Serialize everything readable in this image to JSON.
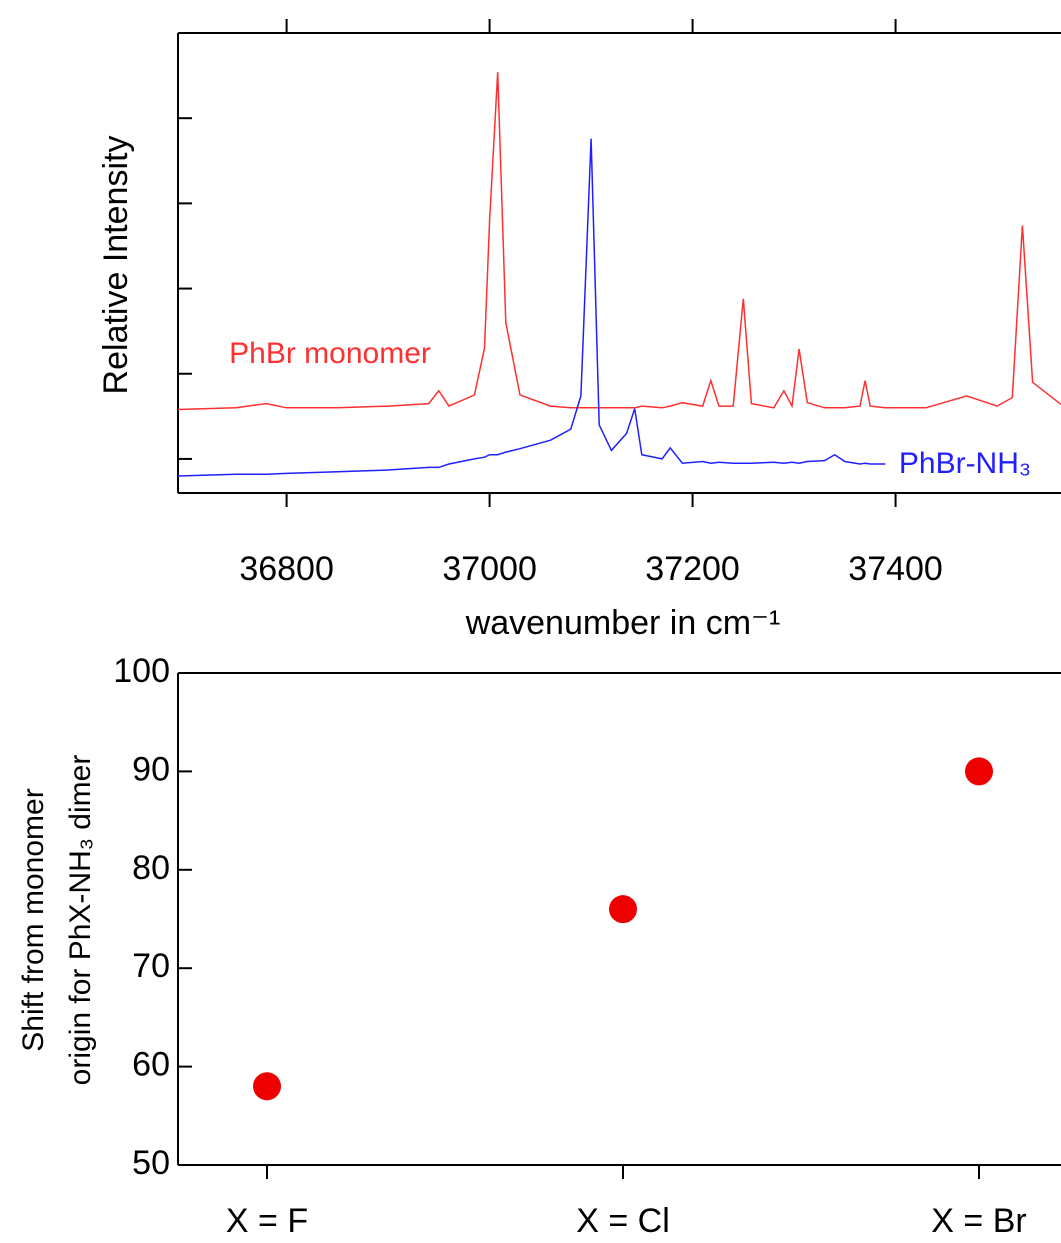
{
  "chart_data": [
    {
      "type": "line",
      "xlabel": "wavenumber in cm⁻¹",
      "ylabel": "Relative Intensity",
      "x": [
        36693,
        36750,
        36780,
        36800,
        36850,
        36900,
        36940,
        36950,
        36960,
        36985,
        36995,
        37000,
        37008,
        37016,
        37030,
        37060,
        37080,
        37090,
        37100,
        37108,
        37120,
        37135,
        37143,
        37150,
        37170,
        37178,
        37190,
        37210,
        37218,
        37226,
        37240,
        37250,
        37258,
        37280,
        37290,
        37298,
        37305,
        37313,
        37330,
        37340,
        37350,
        37365,
        37370,
        37375,
        37390,
        37430,
        37470,
        37500,
        37515,
        37525,
        37535,
        37563
      ],
      "series": [
        {
          "name": "PhBr monomer",
          "color": "#ff3030",
          "values": [
            0.58,
            0.6,
            0.65,
            0.6,
            0.6,
            0.62,
            0.65,
            0.8,
            0.62,
            0.75,
            1.3,
            2.8,
            4.54,
            1.6,
            0.75,
            0.62,
            0.6,
            0.6,
            0.6,
            0.6,
            0.6,
            0.6,
            0.6,
            0.62,
            0.6,
            0.62,
            0.66,
            0.62,
            0.92,
            0.62,
            0.62,
            1.88,
            0.65,
            0.6,
            0.8,
            0.62,
            1.29,
            0.66,
            0.6,
            0.6,
            0.6,
            0.62,
            0.92,
            0.62,
            0.6,
            0.6,
            0.74,
            0.62,
            0.72,
            2.74,
            0.9,
            0.64
          ]
        },
        {
          "name": "PhBr-NH₃",
          "color": "#2020ff",
          "values": [
            -0.2,
            -0.18,
            -0.18,
            -0.17,
            -0.15,
            -0.13,
            -0.1,
            -0.1,
            -0.06,
            0.0,
            0.02,
            0.05,
            0.05,
            0.08,
            0.12,
            0.22,
            0.35,
            0.74,
            3.76,
            0.4,
            0.1,
            0.3,
            0.59,
            0.05,
            0.0,
            0.13,
            -0.05,
            -0.03,
            -0.05,
            -0.04,
            -0.05,
            -0.05,
            -0.05,
            -0.04,
            -0.05,
            -0.04,
            -0.05,
            -0.03,
            -0.02,
            0.05,
            -0.03,
            -0.06,
            -0.05,
            -0.06,
            -0.06,
            null,
            null,
            null,
            null,
            null,
            null,
            null
          ]
        }
      ],
      "xlim": [
        36693,
        37563
      ],
      "xticks": [
        36800,
        37000,
        37200,
        37400
      ],
      "ylim": [
        -0.4,
        5.0
      ],
      "yticks": [
        0,
        1,
        2,
        3,
        4,
        5
      ]
    },
    {
      "type": "scatter",
      "ylabel": [
        "Shift from monomer",
        "origin for PhX-NH₃ dimer"
      ],
      "categories": [
        "X = F",
        "X = Cl",
        "X = Br"
      ],
      "values": [
        58,
        76,
        90
      ],
      "color": "#ee0000",
      "ylim": [
        50,
        100
      ],
      "yticks": [
        50,
        60,
        70,
        80,
        90,
        100
      ]
    }
  ]
}
